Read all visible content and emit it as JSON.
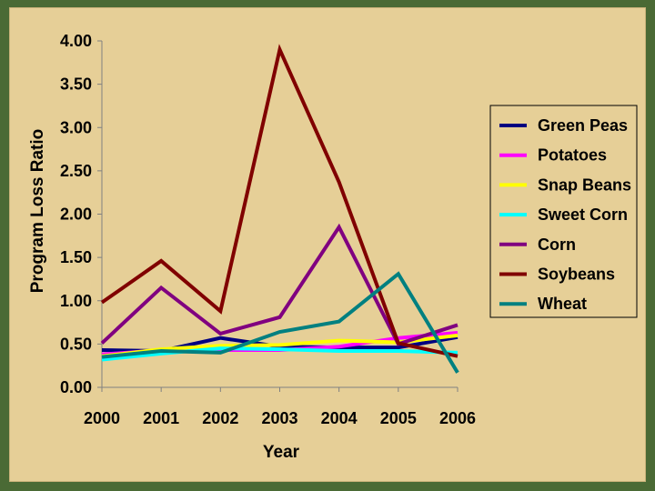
{
  "chart_data": {
    "type": "line",
    "title": "",
    "xlabel": "Year",
    "ylabel": "Program Loss Ratio",
    "categories": [
      "2000",
      "2001",
      "2002",
      "2003",
      "2004",
      "2005",
      "2006"
    ],
    "yticks": [
      "0.00",
      "0.50",
      "1.00",
      "1.50",
      "2.00",
      "2.50",
      "3.00",
      "3.50",
      "4.00"
    ],
    "ylim": [
      0,
      4
    ],
    "grid": false,
    "legend_position": "right",
    "series": [
      {
        "name": "Green Peas",
        "color": "#000080",
        "values": [
          0.43,
          0.42,
          0.57,
          0.47,
          0.46,
          0.46,
          0.58
        ]
      },
      {
        "name": "Potatoes",
        "color": "#ff00ff",
        "values": [
          0.38,
          0.43,
          0.43,
          0.43,
          0.47,
          0.57,
          0.63
        ]
      },
      {
        "name": "Snap Beans",
        "color": "#ffff00",
        "values": [
          0.36,
          0.44,
          0.48,
          0.49,
          0.54,
          0.52,
          0.6
        ]
      },
      {
        "name": "Sweet Corn",
        "color": "#00ffff",
        "values": [
          0.32,
          0.39,
          0.45,
          0.44,
          0.42,
          0.42,
          0.4
        ]
      },
      {
        "name": "Corn",
        "color": "#800080",
        "values": [
          0.51,
          1.15,
          0.62,
          0.81,
          1.85,
          0.5,
          0.72
        ]
      },
      {
        "name": "Soybeans",
        "color": "#800000",
        "values": [
          0.98,
          1.46,
          0.88,
          3.9,
          2.37,
          0.51,
          0.36
        ]
      },
      {
        "name": "Wheat",
        "color": "#008080",
        "values": [
          0.35,
          0.42,
          0.4,
          0.64,
          0.76,
          1.31,
          0.17
        ]
      }
    ]
  }
}
